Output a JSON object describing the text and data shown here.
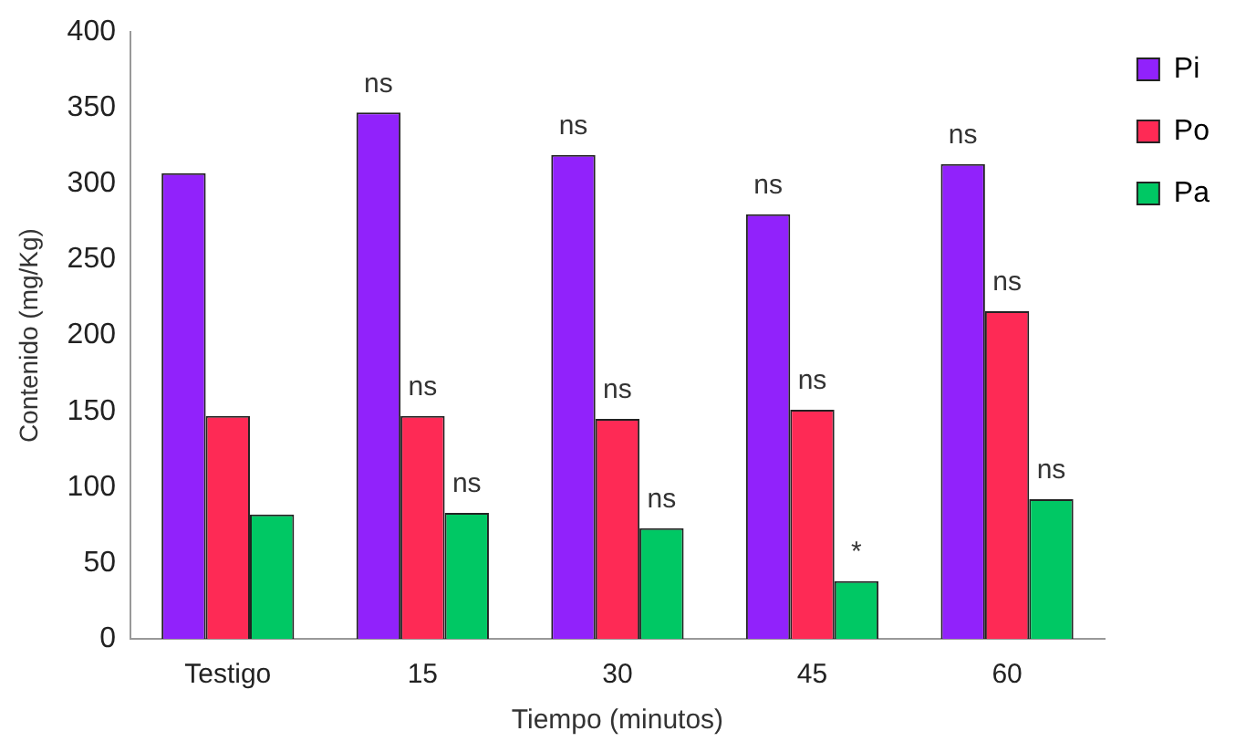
{
  "chart_data": {
    "type": "bar",
    "xlabel": "Tiempo (minutos)",
    "ylabel": "Contenido (mg/Kg)",
    "categories": [
      "Testigo",
      "15",
      "30",
      "45",
      "60"
    ],
    "series": [
      {
        "name": "Pi",
        "color": "#9122fb",
        "values": [
          307,
          347,
          319,
          280,
          313
        ],
        "value_labels": [
          null,
          "ns",
          "ns",
          "ns",
          "ns"
        ]
      },
      {
        "name": "Po",
        "color": "#fe2a55",
        "values": [
          147,
          147,
          145,
          151,
          216
        ],
        "value_labels": [
          null,
          "ns",
          "ns",
          "ns",
          "ns"
        ]
      },
      {
        "name": "Pa",
        "color": "#00c864",
        "values": [
          82,
          83,
          73,
          38,
          92
        ],
        "value_labels": [
          null,
          "ns",
          "ns",
          "*",
          "ns"
        ]
      }
    ],
    "ylim": [
      0,
      400
    ],
    "yticks": [
      0,
      50,
      100,
      150,
      200,
      250,
      300,
      350,
      400
    ],
    "grid": false,
    "legend": "right"
  }
}
